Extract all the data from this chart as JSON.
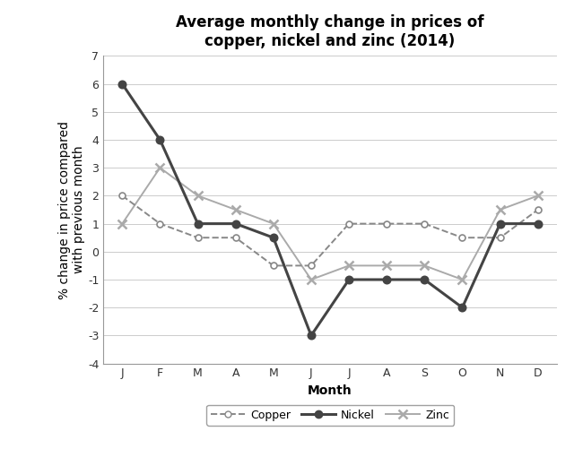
{
  "title": "Average monthly change in prices of\ncopper, nickel and zinc (2014)",
  "xlabel": "Month",
  "ylabel": "% change in price compared\nwith previous month",
  "months": [
    "J",
    "F",
    "M",
    "A",
    "M",
    "J",
    "J",
    "A",
    "S",
    "O",
    "N",
    "D"
  ],
  "copper": [
    2,
    1,
    0.5,
    0.5,
    -0.5,
    -0.5,
    1,
    1,
    1,
    0.5,
    0.5,
    1.5
  ],
  "nickel": [
    6,
    4,
    1,
    1,
    0.5,
    -3,
    -1,
    -1,
    -1,
    -2,
    1,
    1
  ],
  "zinc": [
    1,
    3,
    2,
    1.5,
    1,
    -1,
    -0.5,
    -0.5,
    -0.5,
    -1,
    1.5,
    2
  ],
  "ylim": [
    -4,
    7
  ],
  "yticks": [
    -4,
    -3,
    -2,
    -1,
    0,
    1,
    2,
    3,
    4,
    5,
    6,
    7
  ],
  "background_color": "#ffffff",
  "plot_bg_color": "#ffffff",
  "line_color_copper": "#888888",
  "line_color_nickel": "#444444",
  "line_color_zinc": "#aaaaaa",
  "grid_color": "#cccccc",
  "title_fontsize": 12,
  "label_fontsize": 10,
  "tick_fontsize": 9,
  "legend_fontsize": 9
}
